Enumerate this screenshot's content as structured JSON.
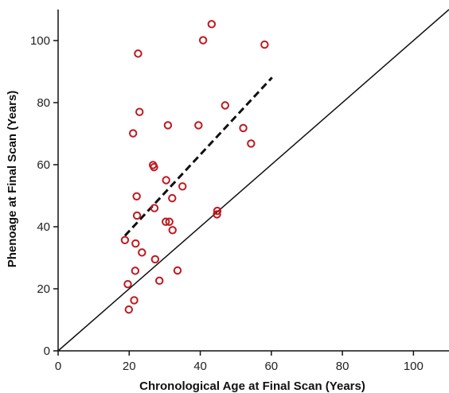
{
  "chart_data": {
    "type": "scatter",
    "xlabel": "Chronological Age at Final Scan (Years)",
    "ylabel": "Phenoage at Final Scan (Years)",
    "xlim": [
      0,
      110
    ],
    "ylim": [
      0,
      110
    ],
    "x_ticks": [
      "0",
      "20",
      "40",
      "60",
      "80",
      "100"
    ],
    "y_ticks": [
      "0",
      "20",
      "40",
      "60",
      "80",
      "100"
    ],
    "grid": false,
    "legend": "none",
    "marker": "open-circle",
    "marker_color": "#c0181f",
    "points": [
      {
        "x": 19.9,
        "y": 13.3
      },
      {
        "x": 21.4,
        "y": 16.3
      },
      {
        "x": 19.6,
        "y": 21.5
      },
      {
        "x": 28.5,
        "y": 22.6
      },
      {
        "x": 21.7,
        "y": 25.8
      },
      {
        "x": 33.6,
        "y": 25.9
      },
      {
        "x": 27.3,
        "y": 29.5
      },
      {
        "x": 23.6,
        "y": 31.7
      },
      {
        "x": 21.8,
        "y": 34.6
      },
      {
        "x": 18.8,
        "y": 35.7
      },
      {
        "x": 32.2,
        "y": 38.9
      },
      {
        "x": 30.3,
        "y": 41.6
      },
      {
        "x": 31.3,
        "y": 41.6
      },
      {
        "x": 22.2,
        "y": 43.6
      },
      {
        "x": 44.7,
        "y": 44.0
      },
      {
        "x": 44.8,
        "y": 45.1
      },
      {
        "x": 27.1,
        "y": 46.0
      },
      {
        "x": 32.1,
        "y": 49.2
      },
      {
        "x": 22.1,
        "y": 49.8
      },
      {
        "x": 35.0,
        "y": 53.0
      },
      {
        "x": 30.4,
        "y": 55.0
      },
      {
        "x": 27.0,
        "y": 59.2
      },
      {
        "x": 26.7,
        "y": 59.9
      },
      {
        "x": 54.3,
        "y": 66.8
      },
      {
        "x": 21.1,
        "y": 70.1
      },
      {
        "x": 52.1,
        "y": 71.8
      },
      {
        "x": 30.9,
        "y": 72.7
      },
      {
        "x": 39.5,
        "y": 72.7
      },
      {
        "x": 22.9,
        "y": 77.0
      },
      {
        "x": 47.0,
        "y": 79.1
      },
      {
        "x": 22.5,
        "y": 95.8
      },
      {
        "x": 58.1,
        "y": 98.7
      },
      {
        "x": 40.8,
        "y": 100.1
      },
      {
        "x": 43.2,
        "y": 105.3
      }
    ],
    "lines": [
      {
        "style": "solid",
        "color": "#111111",
        "x": [
          0,
          110
        ],
        "y": [
          0,
          110
        ]
      },
      {
        "style": "dashed",
        "color": "#111111",
        "x": [
          18.8,
          60.2
        ],
        "y": [
          37.1,
          88.1
        ]
      }
    ]
  }
}
